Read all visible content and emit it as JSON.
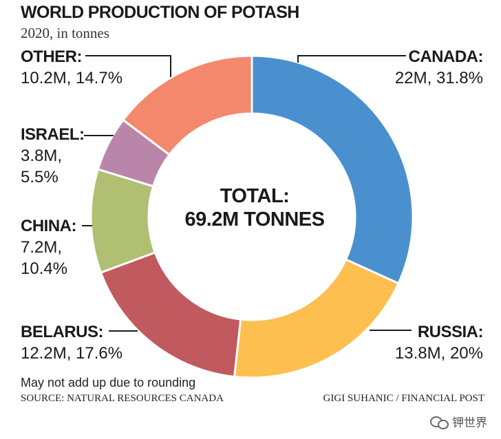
{
  "header": {
    "title": "WORLD PRODUCTION OF POTASH",
    "subtitle": "2020, in tonnes"
  },
  "chart_data": {
    "type": "pie",
    "style": "donut",
    "title": "WORLD PRODUCTION OF POTASH",
    "subtitle": "2020, in tonnes",
    "unit": "tonnes",
    "center_label": [
      "TOTAL:",
      "69.2M TONNES"
    ],
    "slices": [
      {
        "name": "CANADA:",
        "value_text": "22M, 31.8%",
        "value_lines": [
          "22M, 31.8%"
        ],
        "value": 22.0,
        "percent": 31.8,
        "color": "#4a90cf"
      },
      {
        "name": "RUSSIA:",
        "value_text": "13.8M, 20%",
        "value_lines": [
          "13.8M, 20%"
        ],
        "value": 13.8,
        "percent": 20.0,
        "color": "#fdbf4f"
      },
      {
        "name": "BELARUS:",
        "value_text": "12.2M, 17.6%",
        "value_lines": [
          "12.2M, 17.6%"
        ],
        "value": 12.2,
        "percent": 17.6,
        "color": "#c15a5e"
      },
      {
        "name": "CHINA:",
        "value_text": "7.2M, 10.4%",
        "value_lines": [
          "7.2M,",
          "10.4%"
        ],
        "value": 7.2,
        "percent": 10.4,
        "color": "#b0bf72"
      },
      {
        "name": "ISRAEL:",
        "value_text": "3.8M, 5.5%",
        "value_lines": [
          "3.8M,",
          "5.5%"
        ],
        "value": 3.8,
        "percent": 5.5,
        "color": "#b986a9"
      },
      {
        "name": "OTHER:",
        "value_text": "10.2M, 14.7%",
        "value_lines": [
          "10.2M, 14.7%"
        ],
        "value": 10.2,
        "percent": 14.7,
        "color": "#f3886d"
      }
    ]
  },
  "footer": {
    "note": "May not add up due to rounding",
    "source": "SOURCE: NATURAL RESOURCES CANADA",
    "credit": "GIGI SUHANIC / FINANCIAL POST",
    "watermark": "钾世界",
    "watermark_icon": "wechat-icon"
  }
}
